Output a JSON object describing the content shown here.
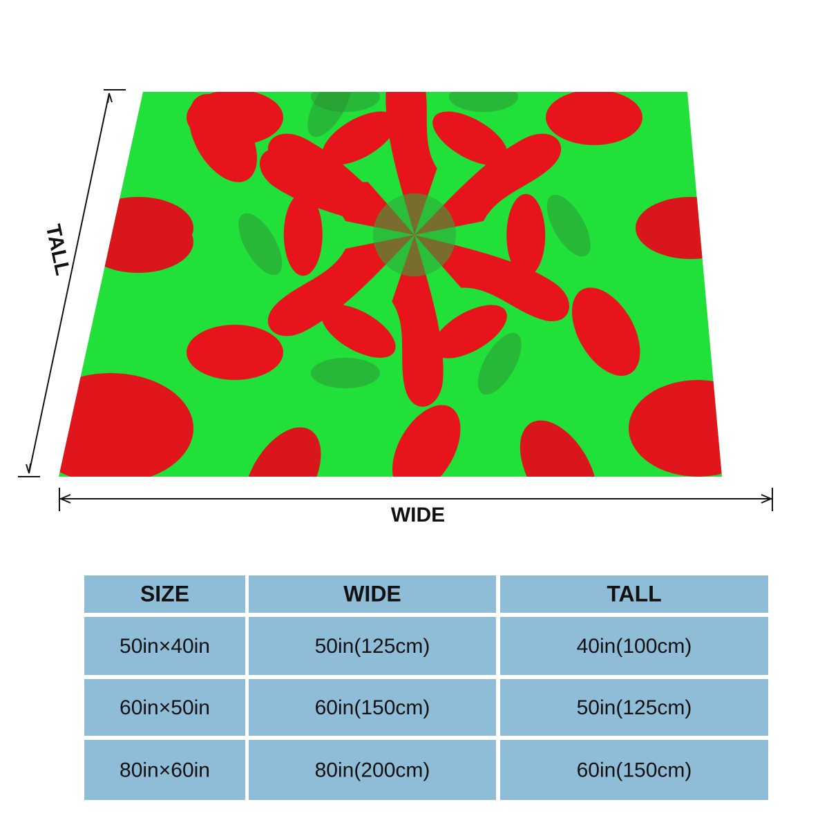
{
  "diagram": {
    "tall_label": "TALL",
    "wide_label": "WIDE"
  },
  "table": {
    "header": [
      "SIZE",
      "WIDE",
      "TALL"
    ],
    "rows": [
      [
        "50in×40in",
        "50in(125cm)",
        "40in(100cm)"
      ],
      [
        "60in×50in",
        "60in(150cm)",
        "50in(125cm)"
      ],
      [
        "80in×60in",
        "80in(200cm)",
        "60in(150cm)"
      ]
    ]
  }
}
